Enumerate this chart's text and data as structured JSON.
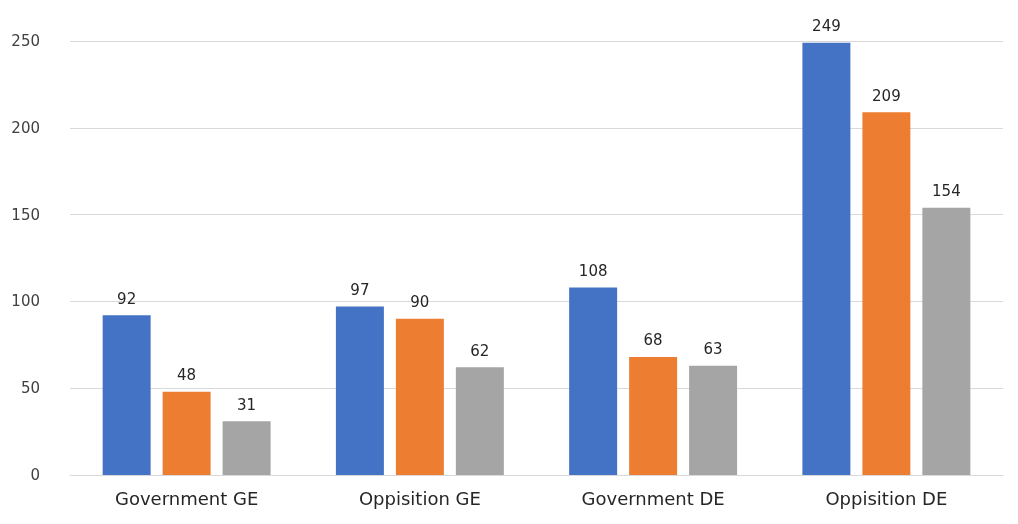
{
  "chart_data": {
    "type": "bar",
    "categories": [
      "Government GE",
      "Oppisition GE",
      "Government DE",
      "Oppisition DE"
    ],
    "series": [
      {
        "color": "#4472c4",
        "values": [
          92,
          97,
          108,
          249
        ]
      },
      {
        "color": "#ed7d31",
        "values": [
          48,
          90,
          68,
          209
        ]
      },
      {
        "color": "#a5a5a5",
        "values": [
          31,
          62,
          63,
          154
        ]
      }
    ],
    "ylim": [
      0,
      250
    ],
    "yticks": [
      0,
      50,
      100,
      150,
      200,
      250
    ],
    "grid": "y",
    "data_labels": true
  }
}
